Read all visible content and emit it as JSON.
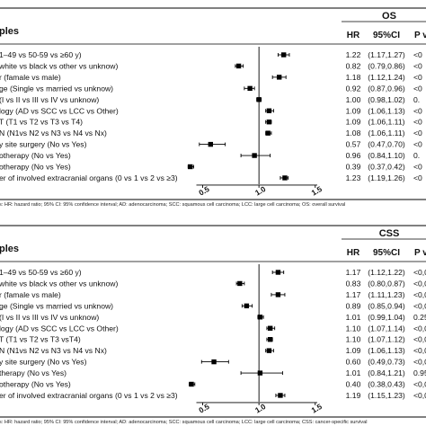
{
  "chart_data": [
    {
      "type": "forest",
      "panel_header": "OS",
      "columns": {
        "variable": "ples",
        "hr": "HR",
        "ci": "95%CI",
        "p": "P v"
      },
      "xaxis": {
        "ticks": [
          "0.5",
          "1.0",
          "1.5"
        ],
        "tick_values": [
          0.5,
          1.0,
          1.5
        ],
        "range": [
          0.3,
          1.55
        ],
        "reference": 1.0
      },
      "rows": [
        {
          "label": "1–49 vs 50-59 vs ≥60 y)",
          "hr": 1.22,
          "lo": 1.17,
          "hi": 1.27,
          "hr_text": "1.22",
          "ci_text": "(1.17,1.27)",
          "p_text": "<0"
        },
        {
          "label": "white vs black vs other vs unknow)",
          "hr": 0.82,
          "lo": 0.79,
          "hi": 0.86,
          "hr_text": "0.82",
          "ci_text": "(0.79,0.86)",
          "p_text": "<0"
        },
        {
          "label": "r (famale vs male)",
          "hr": 1.18,
          "lo": 1.12,
          "hi": 1.24,
          "hr_text": "1.18",
          "ci_text": "(1.12,1.24)",
          "p_text": "<0"
        },
        {
          "label": "ge (Single vs married vs unknow)",
          "hr": 0.92,
          "lo": 0.87,
          "hi": 0.96,
          "hr_text": "0.92",
          "ci_text": "(0.87,0.96)",
          "p_text": "<0"
        },
        {
          "label": "(I vs II vs III vs IV vs unknow)",
          "hr": 1.0,
          "lo": 0.98,
          "hi": 1.02,
          "hr_text": "1.00",
          "ci_text": "(0.98,1.02)",
          "p_text": "0."
        },
        {
          "label": "logy (AD vs SCC vs LCC vs Other)",
          "hr": 1.09,
          "lo": 1.06,
          "hi": 1.13,
          "hr_text": "1.09",
          "ci_text": "(1.06,1.13)",
          "p_text": "<0"
        },
        {
          "label": "T (T1 vs T2 vs T3 vs T4)",
          "hr": 1.09,
          "lo": 1.06,
          "hi": 1.11,
          "hr_text": "1.09",
          "ci_text": "(1.06,1.11)",
          "p_text": "<0"
        },
        {
          "label": "N (N1vs N2 vs N3 vs N4 vs Nx)",
          "hr": 1.08,
          "lo": 1.06,
          "hi": 1.11,
          "hr_text": "1.08",
          "ci_text": "(1.06,1.11)",
          "p_text": "<0"
        },
        {
          "label": "y site surgery (No vs Yes)",
          "hr": 0.57,
          "lo": 0.47,
          "hi": 0.7,
          "hr_text": "0.57",
          "ci_text": "(0.47,0.70)",
          "p_text": "<0"
        },
        {
          "label": "otherapy (No vs Yes)",
          "hr": 0.96,
          "lo": 0.84,
          "hi": 1.1,
          "hr_text": "0.96",
          "ci_text": "(0.84,1.10)",
          "p_text": "0."
        },
        {
          "label": "otherapy (No vs Yes)",
          "hr": 0.39,
          "lo": 0.37,
          "hi": 0.42,
          "hr_text": "0.39",
          "ci_text": "(0.37,0.42)",
          "p_text": "<0"
        },
        {
          "label": "er of involved extracranial organs (0 vs 1 vs 2 vs ≥3)",
          "hr": 1.23,
          "lo": 1.19,
          "hi": 1.26,
          "hr_text": "1.23",
          "ci_text": "(1.19,1.26)",
          "p_text": "<0"
        }
      ],
      "footnote": "s: HR: hazard ratio; 95% CI: 95% confidence interval; AD: adenocarcinoma; SCC: squamous cell carcinoma; LCC: large cell carcinoma; OS: overall survival"
    },
    {
      "type": "forest",
      "panel_header": "CSS",
      "columns": {
        "variable": "ples",
        "hr": "HR",
        "ci": "95%CI",
        "p": "P va"
      },
      "xaxis": {
        "ticks": [
          "0.5",
          "1.0",
          "1.5"
        ],
        "tick_values": [
          0.5,
          1.0,
          1.5
        ],
        "range": [
          0.3,
          1.55
        ],
        "reference": 1.0
      },
      "rows": [
        {
          "label": "1–49 vs 50-59 vs ≥60 y)",
          "hr": 1.17,
          "lo": 1.12,
          "hi": 1.22,
          "hr_text": "1.17",
          "ci_text": "(1.12,1.22)",
          "p_text": "<0,0"
        },
        {
          "label": "white vs black vs other vs unknow)",
          "hr": 0.83,
          "lo": 0.8,
          "hi": 0.87,
          "hr_text": "0.83",
          "ci_text": "(0.80,0.87)",
          "p_text": "<0,0"
        },
        {
          "label": "r (famale vs male)",
          "hr": 1.17,
          "lo": 1.11,
          "hi": 1.23,
          "hr_text": "1.17",
          "ci_text": "(1.11,1.23)",
          "p_text": "<0,0"
        },
        {
          "label": "ge (Single vs married vs unknow)",
          "hr": 0.89,
          "lo": 0.85,
          "hi": 0.94,
          "hr_text": "0.89",
          "ci_text": "(0.85,0.94)",
          "p_text": "<0,0"
        },
        {
          "label": "(I vs II vs III vs IV vs unknow)",
          "hr": 1.01,
          "lo": 0.99,
          "hi": 1.04,
          "hr_text": "1.01",
          "ci_text": "(0.99,1.04)",
          "p_text": "0.25"
        },
        {
          "label": "logy (AD vs SCC vs LCC vs Other)",
          "hr": 1.1,
          "lo": 1.07,
          "hi": 1.14,
          "hr_text": "1.10",
          "ci_text": "(1.07,1.14)",
          "p_text": "<0,0"
        },
        {
          "label": "T (T1 vs T2 vs T3 vsT4)",
          "hr": 1.1,
          "lo": 1.07,
          "hi": 1.12,
          "hr_text": "1.10",
          "ci_text": "(1.07,1.12)",
          "p_text": "<0,0"
        },
        {
          "label": "N (N1vs N2 vs N3 vs N4 vs Nx)",
          "hr": 1.09,
          "lo": 1.06,
          "hi": 1.13,
          "hr_text": "1.09",
          "ci_text": "(1.06,1.13)",
          "p_text": "<0,0"
        },
        {
          "label": "y site surgery (No vs Yes)",
          "hr": 0.6,
          "lo": 0.49,
          "hi": 0.73,
          "hr_text": "0.60",
          "ci_text": "(0.49,0.73)",
          "p_text": "<0,0"
        },
        {
          "label": "therapy (No vs Yes)",
          "hr": 1.01,
          "lo": 0.84,
          "hi": 1.21,
          "hr_text": "1.01",
          "ci_text": "(0.84,1.21)",
          "p_text": "0.95"
        },
        {
          "label": "otherapy (No vs Yes)",
          "hr": 0.4,
          "lo": 0.38,
          "hi": 0.43,
          "hr_text": "0.40",
          "ci_text": "(0.38,0.43)",
          "p_text": "<0,0"
        },
        {
          "label": "er of involved extracranial organs (0 vs 1 vs 2 vs ≥3)",
          "hr": 1.19,
          "lo": 1.15,
          "hi": 1.23,
          "hr_text": "1.19",
          "ci_text": "(1.15,1.23)",
          "p_text": "<0,0"
        }
      ],
      "footnote": "s: HR: hazard ratio; 95% CI: 95% confidence interval; AD: adenocarcinoma; SCC: squamous cell carcinoma; LCC: large cell carcinoma; CSS: cancer-specific survival"
    }
  ]
}
